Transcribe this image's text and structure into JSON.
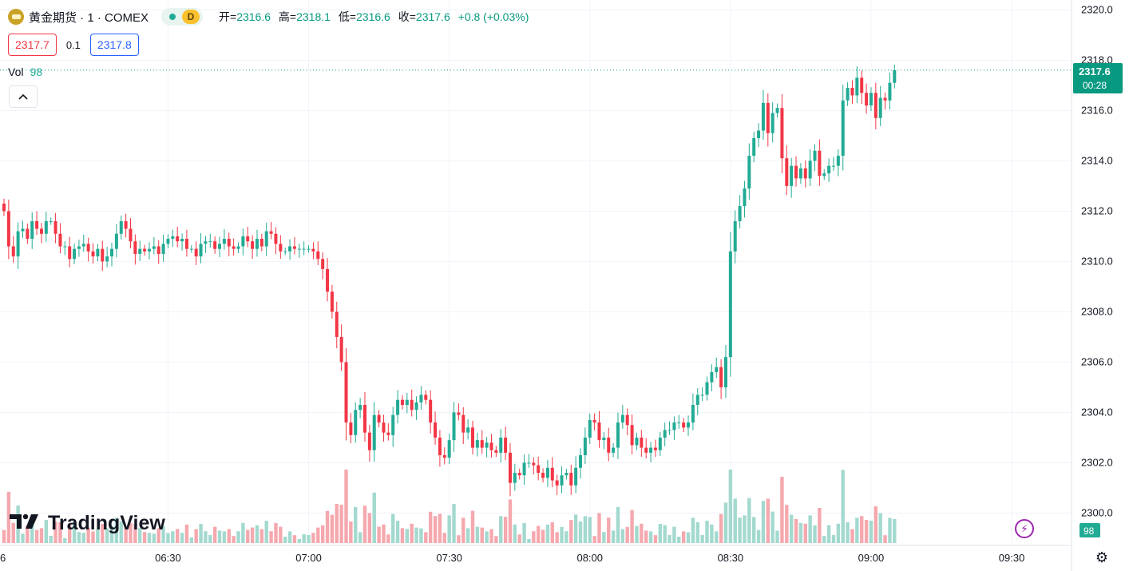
{
  "legend": {
    "symbol_title": "黄金期货 · 1 · COMEX",
    "interval_badge": "D",
    "open_label": "开=",
    "open_value": "2316.6",
    "high_label": "高=",
    "high_value": "2318.1",
    "low_label": "低=",
    "low_value": "2316.6",
    "close_label": "收=",
    "close_value": "2317.6",
    "change": "+0.8 (+0.03%)",
    "bid": "2317.7",
    "spread": "0.1",
    "ask": "2317.8",
    "vol_label": "Vol",
    "vol_value": "98"
  },
  "price_label": {
    "price": "2317.6",
    "countdown": "00:28"
  },
  "volume_label": "98",
  "logo_text": "TradingView",
  "left_edge_label": "6",
  "icons": {
    "logo": "tradingview-logo-icon",
    "bolt": "lightning-icon",
    "gear": "settings-icon",
    "collapse": "chevron-up-icon",
    "gold": "gold-bars-icon"
  },
  "colors": {
    "up": "#22ab94",
    "down": "#f23645",
    "up_volume": "#a3d9cf",
    "down_volume": "#f5a8ae",
    "grid": "#f0f3fa",
    "accent_label": "#089981"
  },
  "chart_data": {
    "type": "candlestick",
    "title": "黄金期货 · 1 · COMEX",
    "interval_minutes": 1,
    "yaxis_ticks": [
      "2300.0",
      "2302.0",
      "2304.0",
      "2306.0",
      "2308.0",
      "2310.0",
      "2312.0",
      "2314.0",
      "2316.0",
      "2318.0",
      "2320.0"
    ],
    "ylim": [
      2299.0,
      2320.2
    ],
    "xaxis_ticks": [
      {
        "time": "06:30",
        "index": 35
      },
      {
        "time": "07:00",
        "index": 65
      },
      {
        "time": "07:30",
        "index": 95
      },
      {
        "time": "08:00",
        "index": 125
      },
      {
        "time": "08:30",
        "index": 155
      },
      {
        "time": "09:00",
        "index": 185
      },
      {
        "time": "09:30",
        "index": 215
      }
    ],
    "grid": true,
    "last_price": 2317.6,
    "close": [
      2312.0,
      2310.6,
      2310.2,
      2311.2,
      2311.3,
      2310.9,
      2311.6,
      2311.3,
      2311.1,
      2311.6,
      2311.6,
      2311.1,
      2310.6,
      2310.6,
      2310.1,
      2310.5,
      2310.6,
      2310.7,
      2310.4,
      2310.2,
      2310.5,
      2310.0,
      2310.2,
      2310.5,
      2311.1,
      2311.6,
      2311.3,
      2310.8,
      2310.3,
      2310.5,
      2310.4,
      2310.5,
      2310.6,
      2310.3,
      2310.7,
      2310.9,
      2311.0,
      2310.8,
      2310.9,
      2310.5,
      2310.5,
      2310.2,
      2310.7,
      2310.8,
      2310.8,
      2310.5,
      2310.7,
      2310.9,
      2310.6,
      2310.5,
      2310.6,
      2311.0,
      2310.8,
      2310.5,
      2310.9,
      2310.6,
      2311.2,
      2311.1,
      2310.7,
      2310.4,
      2310.4,
      2310.6,
      2310.5,
      2310.5,
      2310.5,
      2310.5,
      2310.4,
      2310.1,
      2309.7,
      2308.8,
      2308.0,
      2307.0,
      2306.0,
      2303.6,
      2303.1,
      2304.1,
      2304.3,
      2303.2,
      2302.5,
      2303.9,
      2303.6,
      2303.2,
      2303.1,
      2303.9,
      2304.5,
      2304.3,
      2304.5,
      2304.1,
      2304.4,
      2304.7,
      2304.5,
      2303.6,
      2303.0,
      2302.3,
      2302.2,
      2302.9,
      2304.0,
      2303.9,
      2303.2,
      2303.4,
      2302.6,
      2302.9,
      2302.6,
      2302.8,
      2302.5,
      2302.4,
      2303.0,
      2302.4,
      2301.2,
      2301.6,
      2301.5,
      2302.0,
      2302.0,
      2301.9,
      2301.6,
      2301.4,
      2301.8,
      2301.3,
      2301.1,
      2301.5,
      2301.6,
      2301.1,
      2301.8,
      2302.3,
      2303.0,
      2303.7,
      2303.6,
      2302.9,
      2303.0,
      2302.4,
      2302.6,
      2303.6,
      2303.9,
      2303.5,
      2302.7,
      2303.0,
      2302.6,
      2302.4,
      2302.6,
      2302.5,
      2303.0,
      2303.3,
      2303.3,
      2303.6,
      2303.6,
      2303.4,
      2303.6,
      2304.3,
      2304.7,
      2304.7,
      2305.2,
      2305.6,
      2305.8,
      2305.0,
      2306.2,
      2310.4,
      2311.6,
      2312.2,
      2312.9,
      2314.2,
      2314.9,
      2315.2,
      2316.3,
      2315.1,
      2315.9,
      2316.1,
      2314.1,
      2313.0,
      2313.8,
      2313.3,
      2313.7,
      2313.3,
      2314.0,
      2314.4,
      2313.4,
      2313.5,
      2313.8,
      2313.8,
      2314.2,
      2316.4,
      2316.9,
      2316.6,
      2317.3,
      2316.7,
      2316.2,
      2316.7,
      2315.7,
      2316.5,
      2316.4,
      2317.1,
      2317.6
    ]
  }
}
